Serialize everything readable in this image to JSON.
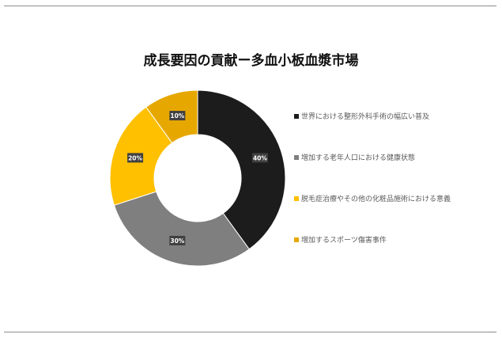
{
  "chart_data": {
    "type": "pie",
    "donut": true,
    "title": "成長要因の貢献ー多血小板血漿市場",
    "categories": [
      "世界における整形外科手術の幅広い普及",
      "増加する老年人口における健康状態",
      "脱毛症治療やその他の化粧品施術における意義",
      "増加するスポーツ傷害事件"
    ],
    "values": [
      40,
      30,
      20,
      10
    ],
    "data_labels": [
      "40%",
      "30%",
      "20%",
      "10%"
    ],
    "colors": [
      "#1c1c1c",
      "#7f7f7f",
      "#ffc000",
      "#e6a800"
    ],
    "legend": "right"
  }
}
